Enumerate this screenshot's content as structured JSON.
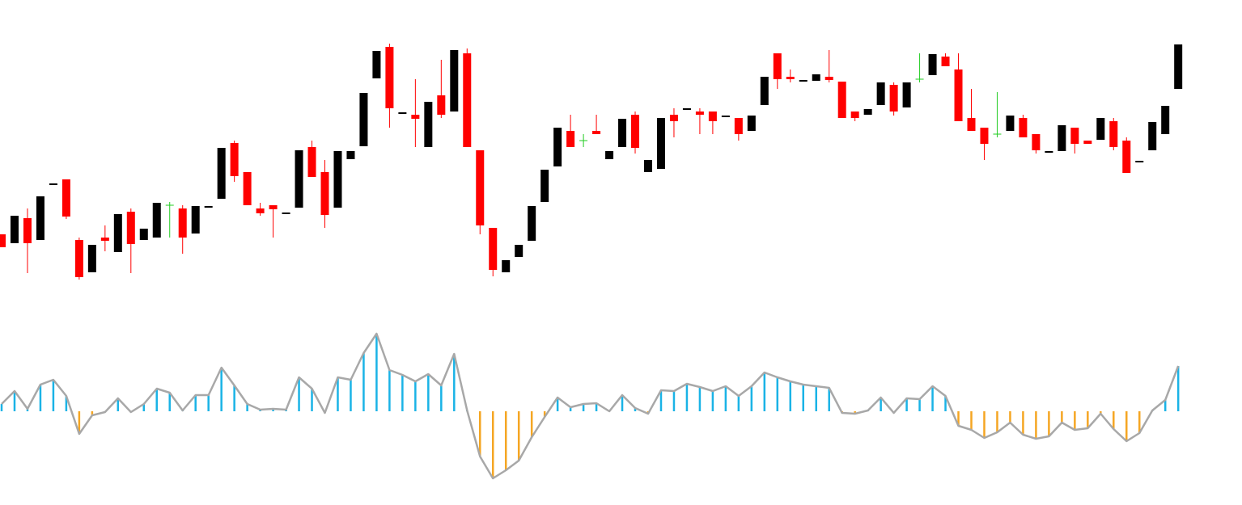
{
  "chart_data": [
    {
      "type": "candlestick",
      "up_color": "#000000",
      "down_color": "#ff0000",
      "doji_color": "#22cc22",
      "ylim": [
        0,
        400
      ],
      "open": [
        110,
        99,
        130,
        103,
        172,
        178,
        103,
        63,
        106,
        88,
        138,
        103,
        106,
        146,
        142,
        111,
        144,
        154,
        223,
        187,
        142,
        146,
        136,
        143,
        218,
        187,
        143,
        203,
        219,
        303,
        342,
        260,
        258,
        218,
        282,
        262,
        334,
        214,
        118,
        63,
        82,
        102,
        150,
        194,
        238,
        226,
        238,
        203,
        218,
        258,
        187,
        191,
        258,
        265,
        262,
        262,
        256,
        254,
        238,
        270,
        334,
        305,
        300,
        300,
        305,
        299,
        262,
        258,
        270,
        295,
        267,
        302,
        307,
        330,
        314,
        254,
        242,
        234,
        238,
        254,
        234,
        212,
        213,
        242,
        226,
        227,
        250,
        226,
        200,
        214,
        234,
        290
      ],
      "high": [
        110,
        133,
        142,
        157,
        173,
        178,
        106,
        97,
        121,
        135,
        142,
        117,
        149,
        150,
        146,
        145,
        145,
        217,
        226,
        187,
        149,
        146,
        137,
        214,
        226,
        202,
        213,
        213,
        285,
        337,
        346,
        261,
        302,
        274,
        326,
        338,
        340,
        214,
        118,
        78,
        97,
        145,
        190,
        242,
        258,
        234,
        258,
        213,
        253,
        262,
        202,
        254,
        266,
        266,
        266,
        262,
        257,
        254,
        257,
        305,
        334,
        314,
        301,
        308,
        338,
        299,
        262,
        265,
        298,
        298,
        298,
        334,
        333,
        334,
        334,
        290,
        242,
        286,
        257,
        258,
        234,
        213,
        245,
        242,
        226,
        254,
        254,
        230,
        201,
        249,
        269,
        345
      ],
      "low": [
        94,
        99,
        62,
        103,
        172,
        129,
        54,
        63,
        89,
        88,
        62,
        103,
        106,
        106,
        86,
        111,
        144,
        154,
        175,
        146,
        133,
        106,
        136,
        143,
        181,
        118,
        143,
        203,
        219,
        303,
        242,
        260,
        218,
        218,
        254,
        262,
        218,
        110,
        58,
        63,
        82,
        102,
        150,
        194,
        218,
        218,
        234,
        203,
        218,
        210,
        187,
        191,
        230,
        265,
        234,
        234,
        256,
        226,
        238,
        270,
        290,
        298,
        300,
        300,
        298,
        254,
        250,
        258,
        270,
        257,
        267,
        298,
        307,
        318,
        250,
        238,
        202,
        230,
        238,
        230,
        210,
        212,
        213,
        210,
        222,
        227,
        214,
        186,
        200,
        214,
        234,
        290
      ],
      "close": [
        94,
        133,
        99,
        157,
        173,
        132,
        57,
        97,
        102,
        135,
        98,
        117,
        149,
        146,
        106,
        145,
        145,
        217,
        182,
        146,
        136,
        141,
        137,
        214,
        181,
        134,
        213,
        213,
        285,
        337,
        266,
        261,
        253,
        274,
        258,
        338,
        218,
        121,
        66,
        78,
        97,
        145,
        190,
        242,
        218,
        226,
        234,
        213,
        253,
        217,
        202,
        254,
        250,
        266,
        258,
        250,
        257,
        234,
        257,
        305,
        302,
        302,
        301,
        308,
        301,
        254,
        254,
        265,
        298,
        262,
        298,
        302,
        333,
        318,
        250,
        238,
        222,
        234,
        257,
        230,
        214,
        213,
        245,
        222,
        222,
        254,
        218,
        186,
        201,
        249,
        269,
        345
      ]
    },
    {
      "type": "oscillator",
      "up_color": "#1ab3e6",
      "down_color": "#f5a623",
      "line_color": "#a8a8a8",
      "ylim": [
        -116,
        116
      ],
      "values": [
        9,
        25,
        3,
        33,
        39,
        19,
        -28,
        -5,
        -1,
        16,
        -1,
        9,
        28,
        23,
        1,
        20,
        20,
        54,
        32,
        9,
        2,
        3,
        2,
        42,
        28,
        -2,
        42,
        39,
        72,
        96,
        51,
        45,
        37,
        46,
        32,
        71,
        1,
        -56,
        -83,
        -73,
        -61,
        -32,
        -7,
        17,
        5,
        9,
        10,
        0,
        20,
        4,
        -3,
        26,
        25,
        34,
        30,
        25,
        31,
        19,
        31,
        48,
        42,
        37,
        33,
        31,
        29,
        -2,
        -3,
        1,
        17,
        -2,
        16,
        15,
        31,
        19,
        -18,
        -23,
        -33,
        -26,
        -14,
        -29,
        -34,
        -31,
        -14,
        -23,
        -21,
        -3,
        -22,
        -37,
        -27,
        1,
        14,
        56
      ]
    }
  ]
}
